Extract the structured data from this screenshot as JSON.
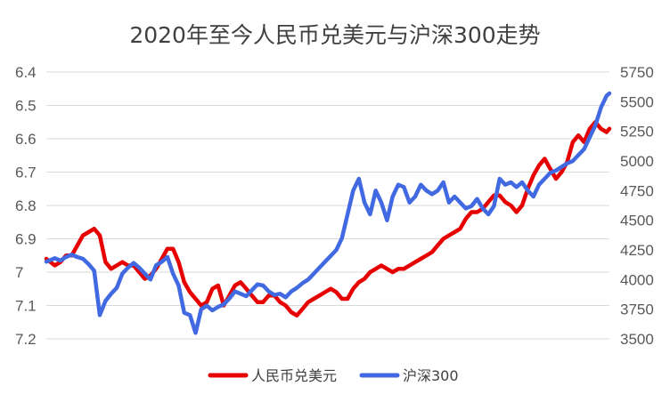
{
  "chart_data": {
    "type": "line",
    "title": "2020年至今人民币兑美元与沪深300走势",
    "xlabel": "",
    "ylabel": "",
    "x_range": [
      0,
      100
    ],
    "y_left": {
      "ylim": [
        6.4,
        7.2
      ],
      "reversed": true,
      "ticks": [
        "6.4",
        "6.5",
        "6.6",
        "6.7",
        "6.8",
        "6.9",
        "7",
        "7.1",
        "7.2"
      ]
    },
    "y_right": {
      "ylim": [
        3500,
        5750
      ],
      "reversed": false,
      "ticks": [
        "5750",
        "5500",
        "5250",
        "5000",
        "4750",
        "4500",
        "4250",
        "4000",
        "3750",
        "3500"
      ]
    },
    "grid": true,
    "legend_position": "bottom",
    "series": [
      {
        "name": "人民币兑美元",
        "axis": "left",
        "color": "#e60000",
        "points": [
          [
            0,
            6.96
          ],
          [
            1.5,
            6.98
          ],
          [
            2.5,
            6.97
          ],
          [
            3.5,
            6.95
          ],
          [
            4.5,
            6.95
          ],
          [
            5.5,
            6.92
          ],
          [
            6.5,
            6.89
          ],
          [
            7.5,
            6.88
          ],
          [
            8.5,
            6.87
          ],
          [
            9.5,
            6.89
          ],
          [
            10.5,
            6.97
          ],
          [
            11.5,
            6.99
          ],
          [
            12.5,
            6.98
          ],
          [
            13.5,
            6.97
          ],
          [
            14.5,
            6.98
          ],
          [
            15.5,
            6.98
          ],
          [
            16.5,
            7.0
          ],
          [
            17.5,
            7.02
          ],
          [
            18.5,
            7.01
          ],
          [
            19.5,
            6.99
          ],
          [
            20.5,
            6.96
          ],
          [
            21.5,
            6.93
          ],
          [
            22.5,
            6.93
          ],
          [
            23.5,
            6.97
          ],
          [
            24.5,
            7.03
          ],
          [
            25.5,
            7.06
          ],
          [
            26.5,
            7.08
          ],
          [
            27.5,
            7.1
          ],
          [
            28.5,
            7.09
          ],
          [
            29.5,
            7.05
          ],
          [
            30.5,
            7.04
          ],
          [
            31.5,
            7.1
          ],
          [
            32.5,
            7.07
          ],
          [
            33.5,
            7.04
          ],
          [
            34.5,
            7.03
          ],
          [
            35.5,
            7.05
          ],
          [
            36.5,
            7.07
          ],
          [
            37.5,
            7.09
          ],
          [
            38.5,
            7.09
          ],
          [
            39.5,
            7.07
          ],
          [
            40.5,
            7.07
          ],
          [
            41.5,
            7.09
          ],
          [
            42.5,
            7.1
          ],
          [
            43.5,
            7.12
          ],
          [
            44.5,
            7.13
          ],
          [
            45.5,
            7.11
          ],
          [
            46.5,
            7.09
          ],
          [
            47.5,
            7.08
          ],
          [
            48.5,
            7.07
          ],
          [
            49.5,
            7.06
          ],
          [
            50.5,
            7.05
          ],
          [
            51.5,
            7.06
          ],
          [
            52.5,
            7.08
          ],
          [
            53.5,
            7.08
          ],
          [
            54.5,
            7.05
          ],
          [
            55.5,
            7.03
          ],
          [
            56.5,
            7.02
          ],
          [
            57.5,
            7.0
          ],
          [
            58.5,
            6.99
          ],
          [
            59.5,
            6.98
          ],
          [
            60.5,
            6.99
          ],
          [
            61.5,
            7.0
          ],
          [
            62.5,
            6.99
          ],
          [
            63.5,
            6.99
          ],
          [
            64.5,
            6.98
          ],
          [
            65.5,
            6.97
          ],
          [
            66.5,
            6.96
          ],
          [
            67.5,
            6.95
          ],
          [
            68.5,
            6.94
          ],
          [
            69.5,
            6.92
          ],
          [
            70.5,
            6.9
          ],
          [
            71.5,
            6.89
          ],
          [
            72.5,
            6.88
          ],
          [
            73.5,
            6.87
          ],
          [
            74.5,
            6.84
          ],
          [
            75.5,
            6.82
          ],
          [
            76.5,
            6.82
          ],
          [
            77.5,
            6.81
          ],
          [
            78.5,
            6.79
          ],
          [
            79.5,
            6.77
          ],
          [
            80.5,
            6.77
          ],
          [
            81.5,
            6.79
          ],
          [
            82.5,
            6.8
          ],
          [
            83.5,
            6.82
          ],
          [
            84.5,
            6.8
          ],
          [
            85.5,
            6.75
          ],
          [
            86.5,
            6.71
          ],
          [
            87.5,
            6.68
          ],
          [
            88.5,
            6.66
          ],
          [
            89.5,
            6.69
          ],
          [
            90.5,
            6.72
          ],
          [
            91.5,
            6.7
          ],
          [
            92.5,
            6.67
          ],
          [
            93.5,
            6.61
          ],
          [
            94.5,
            6.59
          ],
          [
            95.5,
            6.61
          ],
          [
            96.5,
            6.57
          ],
          [
            97.5,
            6.55
          ],
          [
            98.5,
            6.57
          ],
          [
            99.5,
            6.58
          ],
          [
            100,
            6.57
          ]
        ]
      },
      {
        "name": "沪深300",
        "axis": "right",
        "color": "#4169e1",
        "points": [
          [
            0,
            4150
          ],
          [
            1.5,
            4180
          ],
          [
            2.5,
            4160
          ],
          [
            3.5,
            4190
          ],
          [
            4.5,
            4210
          ],
          [
            5.5,
            4190
          ],
          [
            6.5,
            4175
          ],
          [
            7.5,
            4130
          ],
          [
            8.5,
            4075
          ],
          [
            9.5,
            3700
          ],
          [
            10.5,
            3820
          ],
          [
            11.5,
            3880
          ],
          [
            12.5,
            3930
          ],
          [
            13.5,
            4050
          ],
          [
            14.5,
            4100
          ],
          [
            15.5,
            4140
          ],
          [
            16.5,
            4100
          ],
          [
            17.5,
            4050
          ],
          [
            18.5,
            4000
          ],
          [
            19.5,
            4120
          ],
          [
            20.5,
            4150
          ],
          [
            21.5,
            4190
          ],
          [
            22.5,
            4050
          ],
          [
            23.5,
            3950
          ],
          [
            24.5,
            3720
          ],
          [
            25.5,
            3700
          ],
          [
            26.5,
            3550
          ],
          [
            27.5,
            3750
          ],
          [
            28.5,
            3780
          ],
          [
            29.5,
            3740
          ],
          [
            30.5,
            3770
          ],
          [
            31.5,
            3790
          ],
          [
            32.5,
            3840
          ],
          [
            33.5,
            3900
          ],
          [
            34.5,
            3880
          ],
          [
            35.5,
            3860
          ],
          [
            36.5,
            3910
          ],
          [
            37.5,
            3960
          ],
          [
            38.5,
            3950
          ],
          [
            39.5,
            3900
          ],
          [
            40.5,
            3870
          ],
          [
            41.5,
            3880
          ],
          [
            42.5,
            3850
          ],
          [
            43.5,
            3900
          ],
          [
            44.5,
            3930
          ],
          [
            45.5,
            3970
          ],
          [
            46.5,
            4000
          ],
          [
            47.5,
            4050
          ],
          [
            48.5,
            4100
          ],
          [
            49.5,
            4150
          ],
          [
            50.5,
            4200
          ],
          [
            51.5,
            4250
          ],
          [
            52.5,
            4350
          ],
          [
            53.5,
            4550
          ],
          [
            54.5,
            4750
          ],
          [
            55.5,
            4850
          ],
          [
            56.5,
            4650
          ],
          [
            57.5,
            4550
          ],
          [
            58.5,
            4750
          ],
          [
            59.5,
            4650
          ],
          [
            60.5,
            4500
          ],
          [
            61.5,
            4700
          ],
          [
            62.5,
            4800
          ],
          [
            63.5,
            4780
          ],
          [
            64.5,
            4650
          ],
          [
            65.5,
            4700
          ],
          [
            66.5,
            4800
          ],
          [
            67.5,
            4750
          ],
          [
            68.5,
            4720
          ],
          [
            69.5,
            4750
          ],
          [
            70.5,
            4820
          ],
          [
            71.5,
            4650
          ],
          [
            72.5,
            4700
          ],
          [
            73.5,
            4650
          ],
          [
            74.5,
            4600
          ],
          [
            75.5,
            4620
          ],
          [
            76.5,
            4680
          ],
          [
            77.5,
            4600
          ],
          [
            78.5,
            4550
          ],
          [
            79.5,
            4620
          ],
          [
            80.5,
            4850
          ],
          [
            81.5,
            4800
          ],
          [
            82.5,
            4820
          ],
          [
            83.5,
            4780
          ],
          [
            84.5,
            4820
          ],
          [
            85.5,
            4750
          ],
          [
            86.5,
            4700
          ],
          [
            87.5,
            4800
          ],
          [
            88.5,
            4850
          ],
          [
            89.5,
            4900
          ],
          [
            90.5,
            4920
          ],
          [
            91.5,
            4950
          ],
          [
            92.5,
            4980
          ],
          [
            93.5,
            5000
          ],
          [
            94.5,
            5050
          ],
          [
            95.5,
            5100
          ],
          [
            96.5,
            5200
          ],
          [
            97.5,
            5300
          ],
          [
            98.5,
            5450
          ],
          [
            99.5,
            5550
          ],
          [
            100,
            5570
          ]
        ]
      }
    ]
  }
}
